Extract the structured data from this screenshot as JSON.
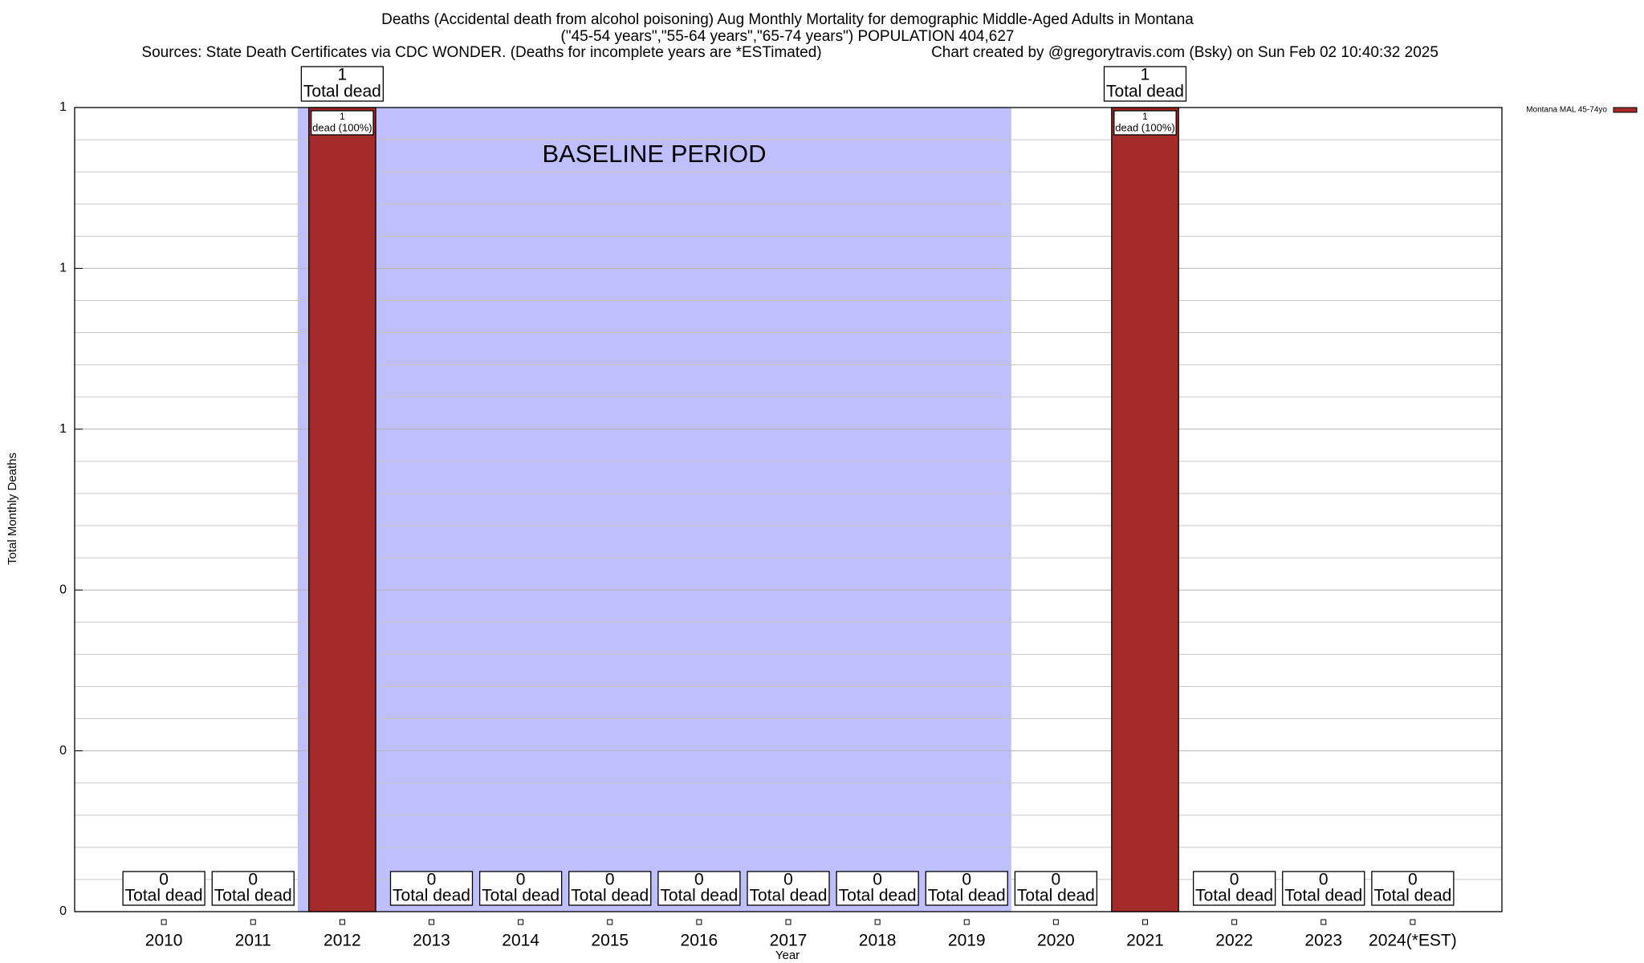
{
  "chart_data": {
    "type": "bar",
    "title": "Deaths (Accidental death from alcohol poisoning) Aug Monthly Mortality for demographic Middle-Aged Adults in Montana",
    "subtitle": "(\"45-54 years\",\"55-64 years\",\"65-74 years\") POPULATION 404,627",
    "source": "Sources: State Death Certificates via CDC WONDER. (Deaths for incomplete years are *ESTimated)",
    "credit": "Chart created by @gregorytravis.com (Bsky) on Sun Feb 02 10:40:32 2025",
    "x_label": "Year",
    "y_label": "Total Monthly Deaths",
    "categories": [
      "2010",
      "2011",
      "2012",
      "2013",
      "2014",
      "2015",
      "2016",
      "2017",
      "2018",
      "2019",
      "2020",
      "2021",
      "2022",
      "2023",
      "2024(*EST)"
    ],
    "series": [
      {
        "name": "Montana MAL 45-74yo",
        "color": "#a52a2a",
        "values": [
          0,
          0,
          1,
          0,
          0,
          0,
          0,
          0,
          0,
          0,
          0,
          1,
          0,
          0,
          0
        ]
      }
    ],
    "total_label": "Total dead",
    "inner_labels": [
      null,
      null,
      "dead (100%)",
      null,
      null,
      null,
      null,
      null,
      null,
      null,
      null,
      "dead (100%)",
      null,
      null,
      null
    ],
    "baseline": {
      "label": "BASELINE PERIOD",
      "from": "2012",
      "to": "2019",
      "color": "#bfbffd"
    },
    "ylim": [
      0,
      1
    ],
    "yticks": [
      0,
      {
        "value": 0.2,
        "label": "0"
      },
      {
        "value": 0.4,
        "label": "0"
      },
      {
        "value": 0.6,
        "label": "1"
      },
      {
        "value": 0.8,
        "label": "1"
      },
      {
        "value": 1,
        "label": "1"
      }
    ],
    "minor_yticks": [
      0.04,
      0.08,
      0.12,
      0.16,
      0.24,
      0.28,
      0.32,
      0.36,
      0.44,
      0.48,
      0.52,
      0.56,
      0.64,
      0.68,
      0.72,
      0.76,
      0.84,
      0.88,
      0.92,
      0.96
    ],
    "grid": true,
    "legend": "top-right"
  }
}
